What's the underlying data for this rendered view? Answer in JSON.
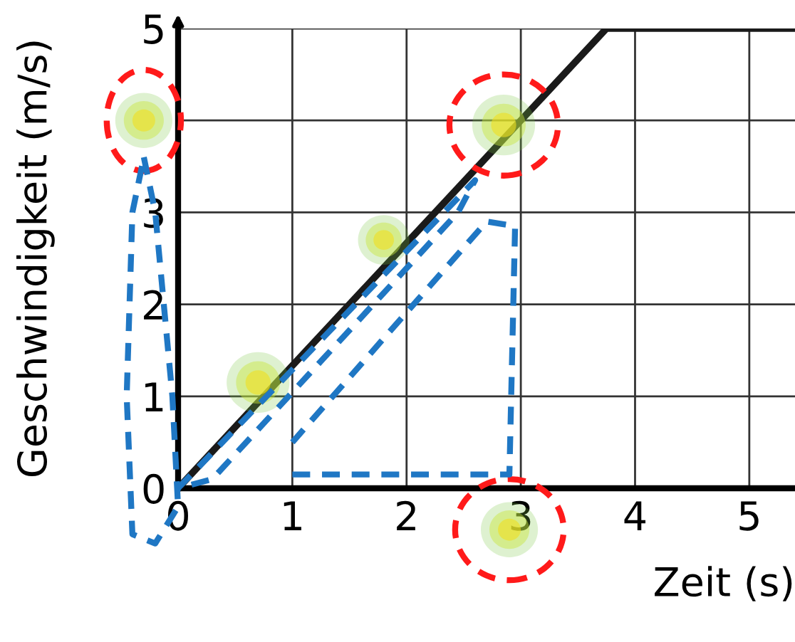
{
  "chart_data": {
    "type": "line",
    "xlabel": "Zeit (s)",
    "ylabel": "Geschwindigkeit (m/s)",
    "x": [
      0,
      3.75,
      5.4
    ],
    "series": [
      {
        "color": "#1a1a1a",
        "values": [
          0,
          5,
          5
        ]
      }
    ],
    "xlim": [
      0,
      5.4
    ],
    "ylim": [
      0,
      5
    ],
    "xticks": [
      0,
      1,
      2,
      3,
      4,
      5
    ],
    "yticks": [
      0,
      1,
      2,
      3,
      {
        "value": 4,
        "label": null
      },
      5
    ],
    "grid": true,
    "marker": "none",
    "line_style": "solid"
  }
}
